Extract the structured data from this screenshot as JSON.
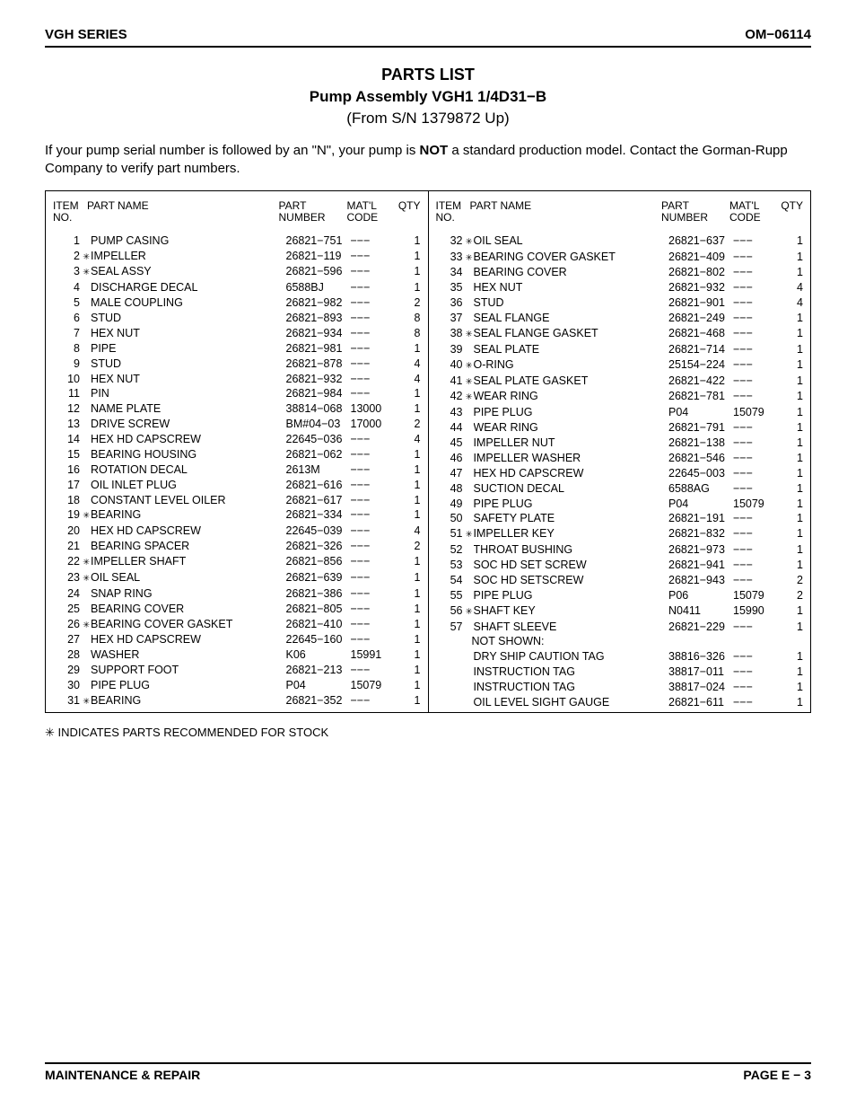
{
  "header": {
    "left": "VGH SERIES",
    "right": "OM−06114"
  },
  "title": {
    "line1": "PARTS LIST",
    "line2": "Pump Assembly VGH1 1/4D31−B",
    "line3": "(From S/N 1379872 Up)"
  },
  "note_pre": "If your pump serial number is followed by an \"N\", your pump is ",
  "note_bold": "NOT",
  "note_post": " a standard production model. Contact the Gorman-Rupp Company to verify part numbers.",
  "col_headers": {
    "item1": "ITEM",
    "item2": "NO.",
    "name": "PART NAME",
    "part1": "PART",
    "part2": "NUMBER",
    "mat1": "MAT'L",
    "mat2": "CODE",
    "qty": "QTY"
  },
  "dash": "−−−",
  "star": "✳",
  "left_rows": [
    {
      "no": "1",
      "s": false,
      "name": "PUMP CASING",
      "part": "26821−751",
      "mat": "−−−",
      "qty": "1"
    },
    {
      "no": "2",
      "s": true,
      "name": "IMPELLER",
      "part": "26821−119",
      "mat": "−−−",
      "qty": "1"
    },
    {
      "no": "3",
      "s": true,
      "name": "SEAL ASSY",
      "part": "26821−596",
      "mat": "−−−",
      "qty": "1"
    },
    {
      "no": "4",
      "s": false,
      "name": "DISCHARGE DECAL",
      "part": "6588BJ",
      "mat": "−−−",
      "qty": "1"
    },
    {
      "no": "5",
      "s": false,
      "name": "MALE COUPLING",
      "part": "26821−982",
      "mat": "−−−",
      "qty": "2"
    },
    {
      "no": "6",
      "s": false,
      "name": "STUD",
      "part": "26821−893",
      "mat": "−−−",
      "qty": "8"
    },
    {
      "no": "7",
      "s": false,
      "name": "HEX NUT",
      "part": "26821−934",
      "mat": "−−−",
      "qty": "8"
    },
    {
      "no": "8",
      "s": false,
      "name": "PIPE",
      "part": "26821−981",
      "mat": "−−−",
      "qty": "1"
    },
    {
      "no": "9",
      "s": false,
      "name": "STUD",
      "part": "26821−878",
      "mat": "−−−",
      "qty": "4"
    },
    {
      "no": "10",
      "s": false,
      "name": "HEX NUT",
      "part": "26821−932",
      "mat": "−−−",
      "qty": "4"
    },
    {
      "no": "11",
      "s": false,
      "name": "PIN",
      "part": "26821−984",
      "mat": "−−−",
      "qty": "1"
    },
    {
      "no": "12",
      "s": false,
      "name": "NAME PLATE",
      "part": "38814−068",
      "mat": "13000",
      "qty": "1"
    },
    {
      "no": "13",
      "s": false,
      "name": "DRIVE SCREW",
      "part": "BM#04−03",
      "mat": "17000",
      "qty": "2"
    },
    {
      "no": "14",
      "s": false,
      "name": "HEX HD CAPSCREW",
      "part": "22645−036",
      "mat": "−−−",
      "qty": "4"
    },
    {
      "no": "15",
      "s": false,
      "name": "BEARING HOUSING",
      "part": "26821−062",
      "mat": "−−−",
      "qty": "1"
    },
    {
      "no": "16",
      "s": false,
      "name": "ROTATION DECAL",
      "part": "2613M",
      "mat": "−−−",
      "qty": "1"
    },
    {
      "no": "17",
      "s": false,
      "name": "OIL INLET PLUG",
      "part": "26821−616",
      "mat": "−−−",
      "qty": "1"
    },
    {
      "no": "18",
      "s": false,
      "name": "CONSTANT LEVEL OILER",
      "part": "26821−617",
      "mat": "−−−",
      "qty": "1"
    },
    {
      "no": "19",
      "s": true,
      "name": "BEARING",
      "part": "26821−334",
      "mat": "−−−",
      "qty": "1"
    },
    {
      "no": "20",
      "s": false,
      "name": "HEX HD CAPSCREW",
      "part": "22645−039",
      "mat": "−−−",
      "qty": "4"
    },
    {
      "no": "21",
      "s": false,
      "name": "BEARING SPACER",
      "part": "26821−326",
      "mat": "−−−",
      "qty": "2"
    },
    {
      "no": "22",
      "s": true,
      "name": "IMPELLER SHAFT",
      "part": "26821−856",
      "mat": "−−−",
      "qty": "1"
    },
    {
      "no": "23",
      "s": true,
      "name": "OIL SEAL",
      "part": "26821−639",
      "mat": "−−−",
      "qty": "1"
    },
    {
      "no": "24",
      "s": false,
      "name": "SNAP RING",
      "part": "26821−386",
      "mat": "−−−",
      "qty": "1"
    },
    {
      "no": "25",
      "s": false,
      "name": "BEARING COVER",
      "part": "26821−805",
      "mat": "−−−",
      "qty": "1"
    },
    {
      "no": "26",
      "s": true,
      "name": "BEARING COVER GASKET",
      "part": "26821−410",
      "mat": "−−−",
      "qty": "1"
    },
    {
      "no": "27",
      "s": false,
      "name": "HEX HD CAPSCREW",
      "part": "22645−160",
      "mat": "−−−",
      "qty": "1"
    },
    {
      "no": "28",
      "s": false,
      "name": "WASHER",
      "part": "K06",
      "mat": "15991",
      "qty": "1"
    },
    {
      "no": "29",
      "s": false,
      "name": "SUPPORT FOOT",
      "part": "26821−213",
      "mat": "−−−",
      "qty": "1"
    },
    {
      "no": "30",
      "s": false,
      "name": "PIPE PLUG",
      "part": "P04",
      "mat": "15079",
      "qty": "1"
    },
    {
      "no": "31",
      "s": true,
      "name": "BEARING",
      "part": "26821−352",
      "mat": "−−−",
      "qty": "1"
    }
  ],
  "right_rows": [
    {
      "no": "32",
      "s": true,
      "name": "OIL SEAL",
      "part": "26821−637",
      "mat": "−−−",
      "qty": "1"
    },
    {
      "no": "33",
      "s": true,
      "name": "BEARING COVER GASKET",
      "part": "26821−409",
      "mat": "−−−",
      "qty": "1"
    },
    {
      "no": "34",
      "s": false,
      "name": "BEARING COVER",
      "part": "26821−802",
      "mat": "−−−",
      "qty": "1"
    },
    {
      "no": "35",
      "s": false,
      "name": "HEX NUT",
      "part": "26821−932",
      "mat": "−−−",
      "qty": "4"
    },
    {
      "no": "36",
      "s": false,
      "name": "STUD",
      "part": "26821−901",
      "mat": "−−−",
      "qty": "4"
    },
    {
      "no": "37",
      "s": false,
      "name": "SEAL FLANGE",
      "part": "26821−249",
      "mat": "−−−",
      "qty": "1"
    },
    {
      "no": "38",
      "s": true,
      "name": "SEAL FLANGE GASKET",
      "part": "26821−468",
      "mat": "−−−",
      "qty": "1"
    },
    {
      "no": "39",
      "s": false,
      "name": "SEAL PLATE",
      "part": "26821−714",
      "mat": "−−−",
      "qty": "1"
    },
    {
      "no": "40",
      "s": true,
      "name": "O-RING",
      "part": "25154−224",
      "mat": "−−−",
      "qty": "1"
    },
    {
      "no": "41",
      "s": true,
      "name": "SEAL PLATE GASKET",
      "part": "26821−422",
      "mat": "−−−",
      "qty": "1"
    },
    {
      "no": "42",
      "s": true,
      "name": "WEAR RING",
      "part": "26821−781",
      "mat": "−−−",
      "qty": "1"
    },
    {
      "no": "43",
      "s": false,
      "name": "PIPE PLUG",
      "part": "P04",
      "mat": "15079",
      "qty": "1"
    },
    {
      "no": "44",
      "s": false,
      "name": "WEAR RING",
      "part": "26821−791",
      "mat": "−−−",
      "qty": "1"
    },
    {
      "no": "45",
      "s": false,
      "name": "IMPELLER NUT",
      "part": "26821−138",
      "mat": "−−−",
      "qty": "1"
    },
    {
      "no": "46",
      "s": false,
      "name": "IMPELLER WASHER",
      "part": "26821−546",
      "mat": "−−−",
      "qty": "1"
    },
    {
      "no": "47",
      "s": false,
      "name": "HEX HD CAPSCREW",
      "part": "22645−003",
      "mat": "−−−",
      "qty": "1"
    },
    {
      "no": "48",
      "s": false,
      "name": "SUCTION DECAL",
      "part": "6588AG",
      "mat": "−−−",
      "qty": "1"
    },
    {
      "no": "49",
      "s": false,
      "name": "PIPE PLUG",
      "part": "P04",
      "mat": "15079",
      "qty": "1"
    },
    {
      "no": "50",
      "s": false,
      "name": "SAFETY PLATE",
      "part": "26821−191",
      "mat": "−−−",
      "qty": "1"
    },
    {
      "no": "51",
      "s": true,
      "name": "IMPELLER KEY",
      "part": "26821−832",
      "mat": "−−−",
      "qty": "1"
    },
    {
      "no": "52",
      "s": false,
      "name": "THROAT BUSHING",
      "part": "26821−973",
      "mat": "−−−",
      "qty": "1"
    },
    {
      "no": "53",
      "s": false,
      "name": "SOC HD SET SCREW",
      "part": "26821−941",
      "mat": "−−−",
      "qty": "1"
    },
    {
      "no": "54",
      "s": false,
      "name": "SOC HD SETSCREW",
      "part": "26821−943",
      "mat": "−−−",
      "qty": "2"
    },
    {
      "no": "55",
      "s": false,
      "name": "PIPE PLUG",
      "part": "P06",
      "mat": "15079",
      "qty": "2"
    },
    {
      "no": "56",
      "s": true,
      "name": "SHAFT KEY",
      "part": "N0411",
      "mat": "15990",
      "qty": "1"
    },
    {
      "no": "57",
      "s": false,
      "name": "SHAFT SLEEVE",
      "part": "26821−229",
      "mat": "−−−",
      "qty": "1"
    }
  ],
  "not_shown_label": "NOT SHOWN:",
  "not_shown_rows": [
    {
      "name": "DRY SHIP CAUTION TAG",
      "part": "38816−326",
      "mat": "−−−",
      "qty": "1"
    },
    {
      "name": "INSTRUCTION TAG",
      "part": "38817−011",
      "mat": "−−−",
      "qty": "1"
    },
    {
      "name": "INSTRUCTION TAG",
      "part": "38817−024",
      "mat": "−−−",
      "qty": "1"
    },
    {
      "name": "OIL LEVEL SIGHT GAUGE",
      "part": "26821−611",
      "mat": "−−−",
      "qty": "1"
    }
  ],
  "stock_note": "✳ INDICATES PARTS RECOMMENDED FOR STOCK",
  "footer": {
    "left": "MAINTENANCE & REPAIR",
    "right": "PAGE E − 3"
  }
}
